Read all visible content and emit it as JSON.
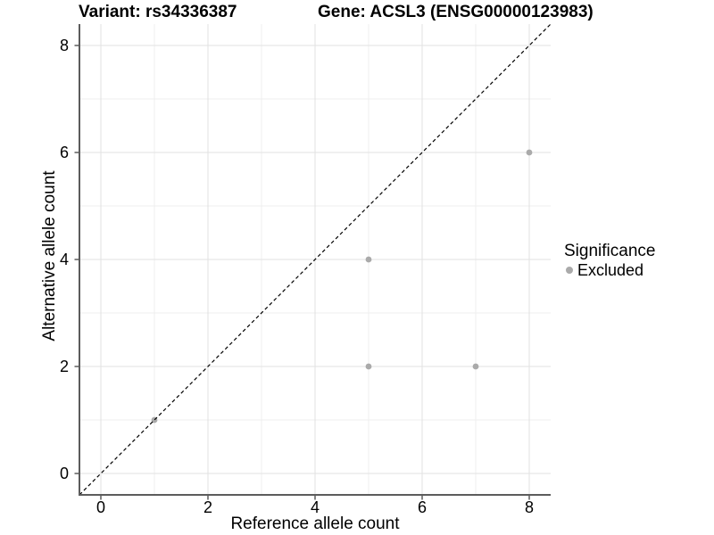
{
  "chart_data": {
    "type": "scatter",
    "title_left": "Variant: rs34336387",
    "title_right": "Gene: ACSL3 (ENSG00000123983)",
    "xlabel": "Reference allele count",
    "ylabel": "Alternative allele count",
    "xlim": [
      -0.4,
      8.4
    ],
    "ylim": [
      -0.4,
      8.4
    ],
    "x_major_ticks": [
      0,
      2,
      4,
      6,
      8
    ],
    "y_major_ticks": [
      0,
      2,
      4,
      6,
      8
    ],
    "x_minor_ticks": [
      1,
      3,
      5,
      7
    ],
    "y_minor_ticks": [
      1,
      3,
      5,
      7
    ],
    "grid": "major+minor",
    "identity_line": {
      "style": "dashed",
      "color": "#000000",
      "from": [
        -0.4,
        -0.4
      ],
      "to": [
        8.4,
        8.4
      ]
    },
    "series": [
      {
        "name": "Excluded",
        "color": "#aaaaaa",
        "points": [
          [
            1,
            1
          ],
          [
            5,
            2
          ],
          [
            5,
            4
          ],
          [
            7,
            2
          ],
          [
            8,
            6
          ]
        ]
      }
    ],
    "legend": {
      "title": "Significance",
      "position": "right",
      "entries": [
        {
          "label": "Excluded",
          "color": "#aaaaaa"
        }
      ]
    },
    "colors": {
      "axis_line": "#5c5c5c",
      "grid_major": "#e2e2e2",
      "grid_minor": "#efefef",
      "text": "#000000",
      "background": "#ffffff"
    }
  }
}
